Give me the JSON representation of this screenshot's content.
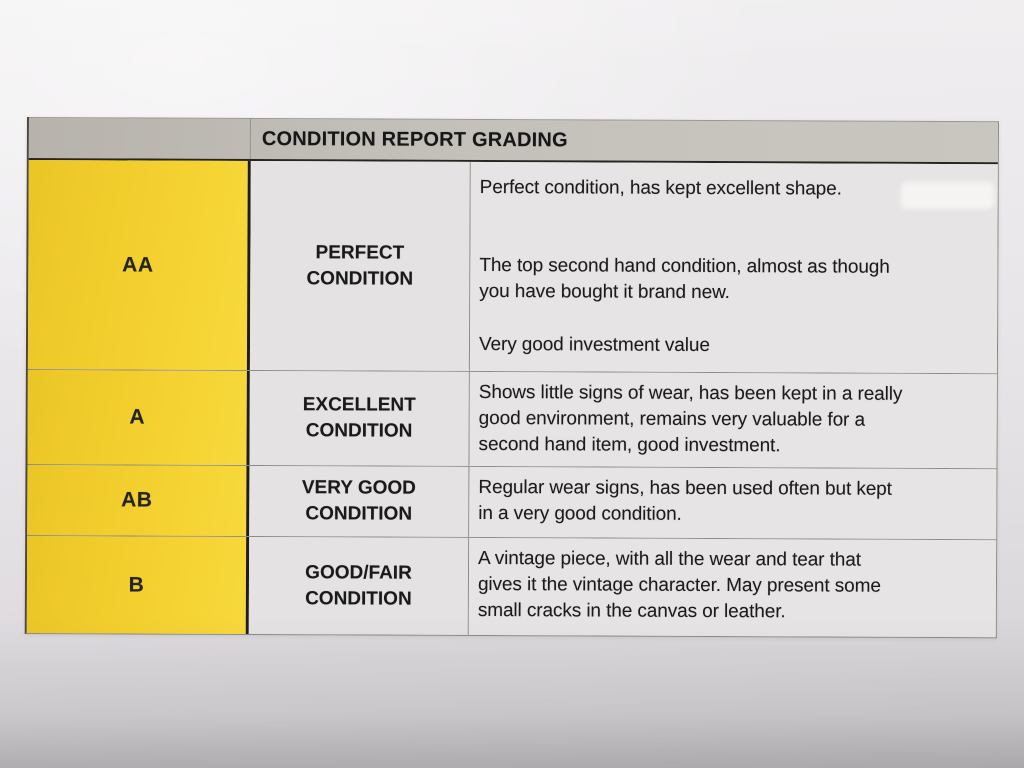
{
  "document": {
    "header": {
      "title": "CONDITION REPORT GRADING"
    },
    "rows": [
      {
        "grade": "AA",
        "condition": "PERFECT\nCONDITION",
        "paragraphs": [
          "Perfect condition, has kept excellent shape.",
          "The top second hand condition, almost as though\nyou have bought it brand new.",
          "Very good investment value"
        ]
      },
      {
        "grade": "A",
        "condition": "EXCELLENT\nCONDITION",
        "paragraphs": [
          "Shows little signs of wear, has been kept in a really\ngood environment, remains very valuable for a\nsecond hand item, good investment."
        ]
      },
      {
        "grade": "AB",
        "condition": "VERY GOOD\nCONDITION",
        "paragraphs": [
          "Regular wear signs, has been used often but kept\nin a very good condition."
        ]
      },
      {
        "grade": "B",
        "condition": "GOOD/FAIR\nCONDITION",
        "paragraphs": [
          "A vintage piece, with all the wear and tear that\ngives it the vintage character. May present some\nsmall cracks in the canvas or leather."
        ]
      }
    ],
    "colors": {
      "grade_column_yellow": "#F2CE2D",
      "header_bar_gray": "#C1BDB7",
      "paper_background": "#E8E6E9",
      "text": "#1C1C1C"
    }
  }
}
